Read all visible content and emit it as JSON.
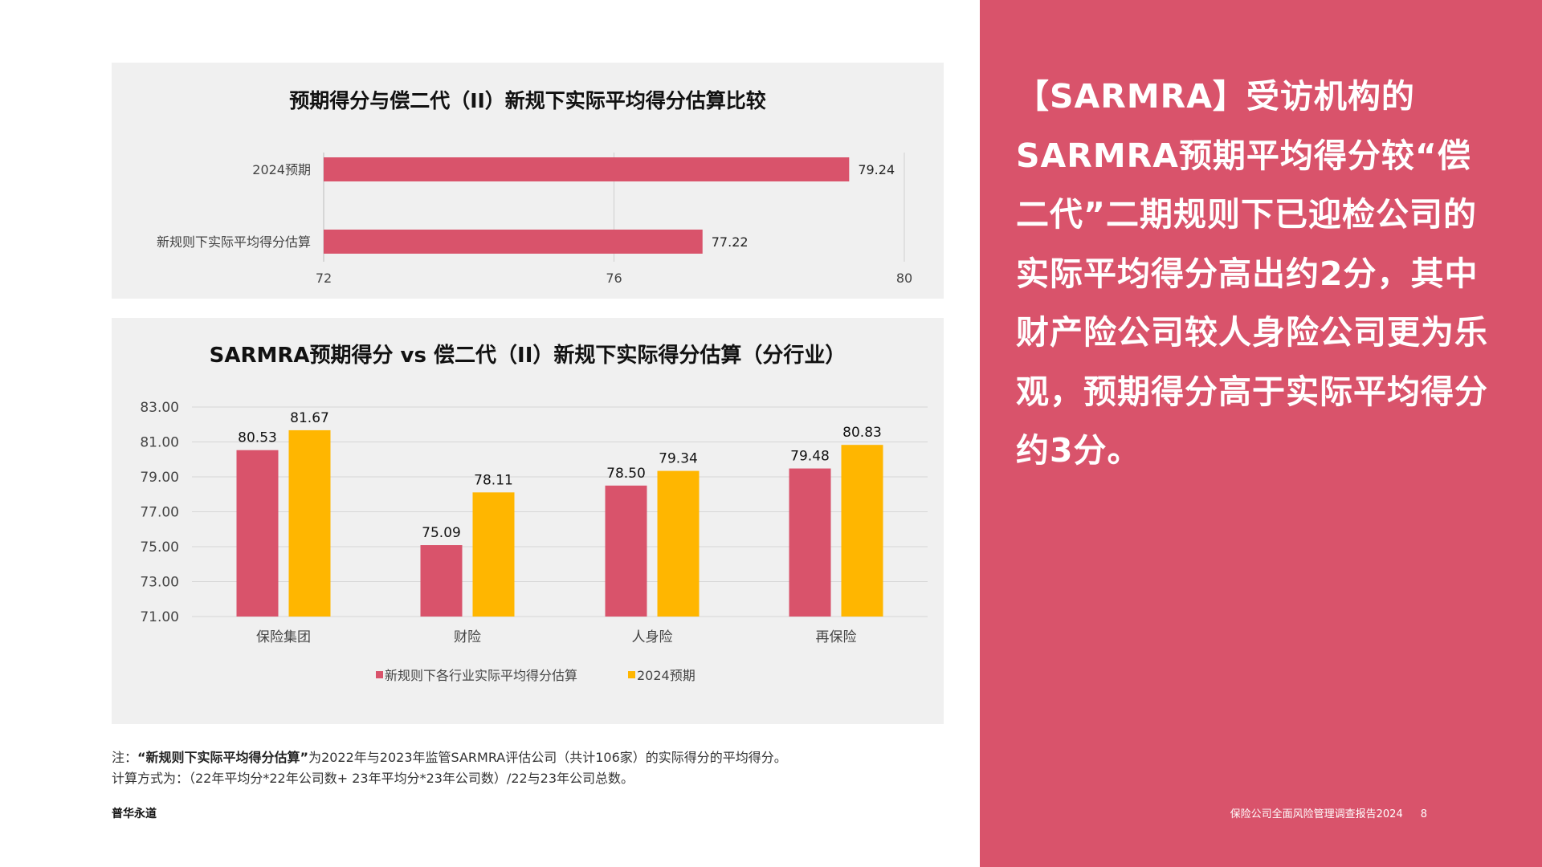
{
  "chart_data": [
    {
      "type": "bar",
      "orientation": "horizontal",
      "title": "预期得分与偿二代（II）新规下实际平均得分估算比较",
      "categories": [
        "2024预期",
        "新规则下实际平均得分估算"
      ],
      "values": [
        79.24,
        77.22
      ],
      "value_labels": [
        "79.24",
        "77.22"
      ],
      "xlim": [
        72,
        80
      ],
      "x_ticks": [
        "72",
        "76",
        "80"
      ],
      "grid": true,
      "color": "#d9536b"
    },
    {
      "type": "bar",
      "title": "SARMRA预期得分 vs 偿二代（II）新规下实际得分估算（分行业）",
      "categories": [
        "保险集团",
        "财险",
        "人身险",
        "再保险"
      ],
      "series": [
        {
          "name": "新规则下各行业实际平均得分估算",
          "values": [
            80.53,
            75.09,
            78.5,
            79.48
          ],
          "labels": [
            "80.53",
            "75.09",
            "78.50",
            "79.48"
          ],
          "color": "#d9536b"
        },
        {
          "name": "2024预期",
          "values": [
            81.67,
            78.11,
            79.34,
            80.83
          ],
          "labels": [
            "81.67",
            "78.11",
            "79.34",
            "80.83"
          ],
          "color": "#ffb600"
        }
      ],
      "ylim": [
        71,
        83
      ],
      "y_ticks": [
        "71.00",
        "73.00",
        "75.00",
        "77.00",
        "79.00",
        "81.00",
        "83.00"
      ],
      "grid": true,
      "legend": "bottom"
    }
  ],
  "note": {
    "prefix": "注：",
    "bold_quote": "“新规则下实际平均得分估算”",
    "text1": "为2022年与2023年监管SARMRA评估公司（共计106家）的实际得分的平均得分。",
    "line2": "计算方式为：（22年平均分*22年公司数+ 23年平均分*23年公司数）/22与23年公司总数。"
  },
  "brand": "普华永道",
  "headline": "【SARMRA】受访机构的SARMRA预期平均得分较“偿二代”二期规则下已迎检公司的实际平均得分高出约2分，其中财产险公司较人身险公司更为乐观，预期得分高于实际平均得分约3分。",
  "footer": {
    "report": "保险公司全面风险管理调查报告2024",
    "page": "8"
  },
  "colors": {
    "accent": "#d9536b",
    "yellow": "#ffb600",
    "panel_bg": "#f0f0f0"
  }
}
